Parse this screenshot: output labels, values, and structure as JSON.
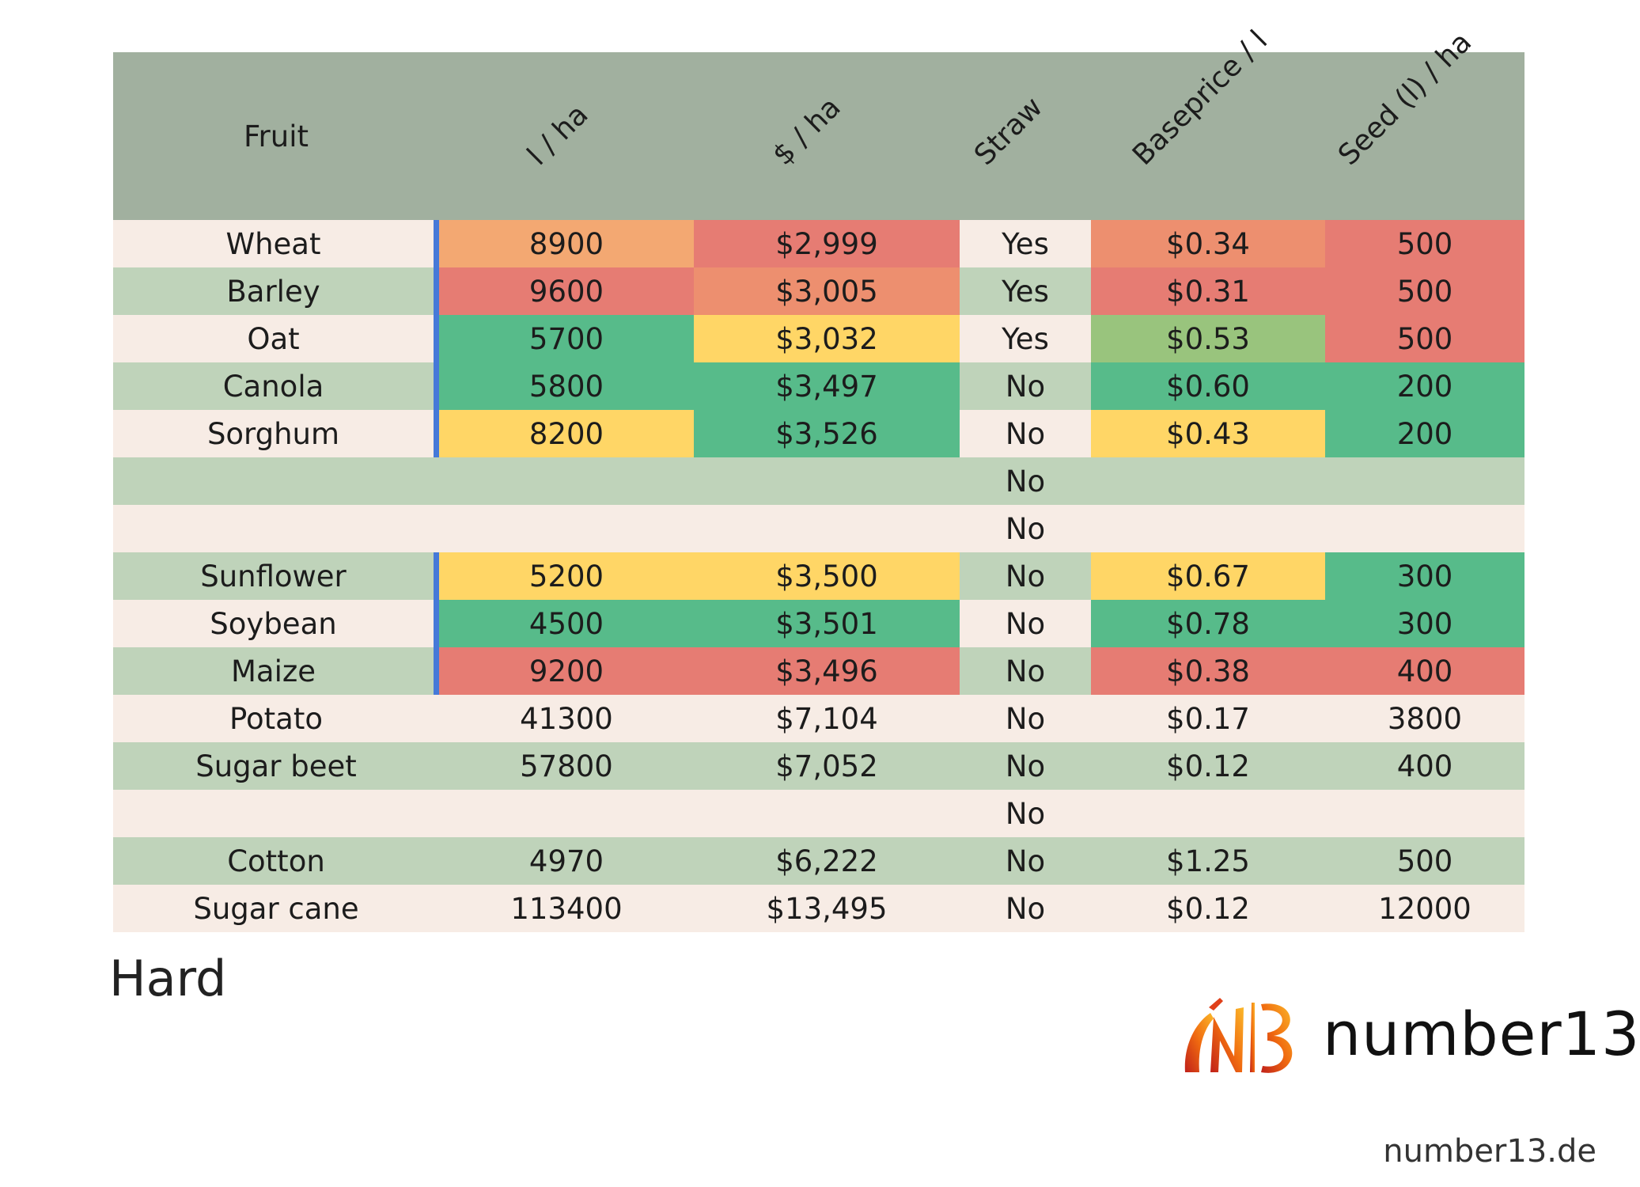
{
  "colors": {
    "header": "#a1b09f",
    "row_light": "#f7ece5",
    "row_dark": "#bfd3ba",
    "red": "#e67c73",
    "orange": "#ed8f6f",
    "light_orange": "#f3a872",
    "yellow": "#ffd666",
    "light_green": "#99c47d",
    "green": "#57bb8a",
    "marker_blue": "#4679d8"
  },
  "table": {
    "headers": [
      "Fruit",
      "l / ha",
      "$ / ha",
      "Straw",
      "Baseprice / l",
      "Seed (l) / ha"
    ],
    "rows": [
      {
        "fruit": "Wheat",
        "l_ha": "8900",
        "usd_ha": "$2,999",
        "straw": "Yes",
        "baseprice": "$0.34",
        "seed": "500",
        "marked": true,
        "colors": [
          "#f3a872",
          "#e67c73",
          null,
          "#ed8f6f",
          "#e67c73"
        ]
      },
      {
        "fruit": "Barley",
        "l_ha": "9600",
        "usd_ha": "$3,005",
        "straw": "Yes",
        "baseprice": "$0.31",
        "seed": "500",
        "marked": true,
        "colors": [
          "#e67c73",
          "#ed8f6f",
          null,
          "#e67c73",
          "#e67c73"
        ]
      },
      {
        "fruit": "Oat",
        "l_ha": "5700",
        "usd_ha": "$3,032",
        "straw": "Yes",
        "baseprice": "$0.53",
        "seed": "500",
        "marked": true,
        "colors": [
          "#57bb8a",
          "#ffd666",
          null,
          "#99c47d",
          "#e67c73"
        ]
      },
      {
        "fruit": "Canola",
        "l_ha": "5800",
        "usd_ha": "$3,497",
        "straw": "No",
        "baseprice": "$0.60",
        "seed": "200",
        "marked": true,
        "colors": [
          "#57bb8a",
          "#57bb8a",
          null,
          "#57bb8a",
          "#57bb8a"
        ]
      },
      {
        "fruit": "Sorghum",
        "l_ha": "8200",
        "usd_ha": "$3,526",
        "straw": "No",
        "baseprice": "$0.43",
        "seed": "200",
        "marked": true,
        "colors": [
          "#ffd666",
          "#57bb8a",
          null,
          "#ffd666",
          "#57bb8a"
        ]
      },
      {
        "fruit": "",
        "l_ha": "",
        "usd_ha": "",
        "straw": "No",
        "baseprice": "",
        "seed": "",
        "marked": false,
        "colors": [
          null,
          null,
          null,
          null,
          null
        ]
      },
      {
        "fruit": "",
        "l_ha": "",
        "usd_ha": "",
        "straw": "No",
        "baseprice": "",
        "seed": "",
        "marked": false,
        "colors": [
          null,
          null,
          null,
          null,
          null
        ]
      },
      {
        "fruit": "Sunflower",
        "l_ha": "5200",
        "usd_ha": "$3,500",
        "straw": "No",
        "baseprice": "$0.67",
        "seed": "300",
        "marked": true,
        "colors": [
          "#ffd666",
          "#ffd666",
          null,
          "#ffd666",
          "#57bb8a"
        ]
      },
      {
        "fruit": "Soybean",
        "l_ha": "4500",
        "usd_ha": "$3,501",
        "straw": "No",
        "baseprice": "$0.78",
        "seed": "300",
        "marked": true,
        "colors": [
          "#57bb8a",
          "#57bb8a",
          null,
          "#57bb8a",
          "#57bb8a"
        ]
      },
      {
        "fruit": "Maize",
        "l_ha": "9200",
        "usd_ha": "$3,496",
        "straw": "No",
        "baseprice": "$0.38",
        "seed": "400",
        "marked": true,
        "colors": [
          "#e67c73",
          "#e67c73",
          null,
          "#e67c73",
          "#e67c73"
        ]
      },
      {
        "fruit": "Potato",
        "l_ha": "41300",
        "usd_ha": "$7,104",
        "straw": "No",
        "baseprice": "$0.17",
        "seed": "3800",
        "marked": false,
        "colors": [
          null,
          null,
          null,
          null,
          null
        ]
      },
      {
        "fruit": "Sugar beet",
        "l_ha": "57800",
        "usd_ha": "$7,052",
        "straw": "No",
        "baseprice": "$0.12",
        "seed": "400",
        "marked": false,
        "colors": [
          null,
          null,
          null,
          null,
          null
        ]
      },
      {
        "fruit": "",
        "l_ha": "",
        "usd_ha": "",
        "straw": "No",
        "baseprice": "",
        "seed": "",
        "marked": false,
        "colors": [
          null,
          null,
          null,
          null,
          null
        ]
      },
      {
        "fruit": "Cotton",
        "l_ha": "4970",
        "usd_ha": "$6,222",
        "straw": "No",
        "baseprice": "$1.25",
        "seed": "500",
        "marked": false,
        "colors": [
          null,
          null,
          null,
          null,
          null
        ]
      },
      {
        "fruit": "Sugar cane",
        "l_ha": "113400",
        "usd_ha": "$13,495",
        "straw": "No",
        "baseprice": "$0.12",
        "seed": "12000",
        "marked": false,
        "colors": [
          null,
          null,
          null,
          null,
          null
        ]
      }
    ]
  },
  "level_label": "Hard",
  "brand": {
    "logo_icon": "number13-logo-icon",
    "name": "number13",
    "website": "number13.de"
  }
}
